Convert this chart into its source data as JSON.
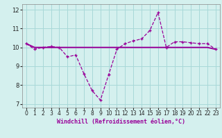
{
  "title": "",
  "xlabel": "Windchill (Refroidissement éolien,°C)",
  "bg_color": "#d4f0ee",
  "grid_color": "#a8d8d8",
  "line_color": "#990099",
  "xlim": [
    -0.5,
    23.5
  ],
  "ylim": [
    6.8,
    12.3
  ],
  "yticks": [
    7,
    8,
    9,
    10,
    11,
    12
  ],
  "xticks": [
    0,
    1,
    2,
    3,
    4,
    5,
    6,
    7,
    8,
    9,
    10,
    11,
    12,
    13,
    14,
    15,
    16,
    17,
    18,
    19,
    20,
    21,
    22,
    23
  ],
  "series1_x": [
    0,
    1,
    2,
    3,
    4,
    5,
    6,
    7,
    8,
    9,
    10,
    11,
    12,
    13,
    14,
    15,
    16,
    17,
    18,
    19,
    20,
    21,
    22,
    23
  ],
  "series1_y": [
    10.2,
    9.9,
    10.0,
    10.05,
    10.0,
    9.5,
    9.6,
    8.6,
    7.7,
    7.2,
    8.55,
    9.9,
    10.2,
    10.35,
    10.45,
    10.9,
    11.85,
    10.0,
    10.3,
    10.3,
    10.25,
    10.2,
    10.2,
    9.9
  ],
  "series2_x": [
    0,
    1,
    2,
    3,
    4,
    5,
    6,
    7,
    8,
    9,
    10,
    11,
    12,
    13,
    14,
    15,
    16,
    17,
    18,
    19,
    20,
    21,
    22,
    23
  ],
  "series2_y": [
    10.2,
    10.0,
    10.0,
    10.0,
    10.0,
    10.0,
    10.0,
    10.0,
    10.0,
    10.0,
    10.0,
    10.0,
    10.0,
    10.0,
    10.0,
    10.0,
    10.0,
    10.0,
    10.0,
    10.0,
    10.0,
    10.0,
    10.0,
    9.9
  ],
  "xlabel_fontsize": 6,
  "tick_fontsize": 5.5,
  "lw1": 0.9,
  "lw2": 1.4,
  "marker_size": 3.5
}
